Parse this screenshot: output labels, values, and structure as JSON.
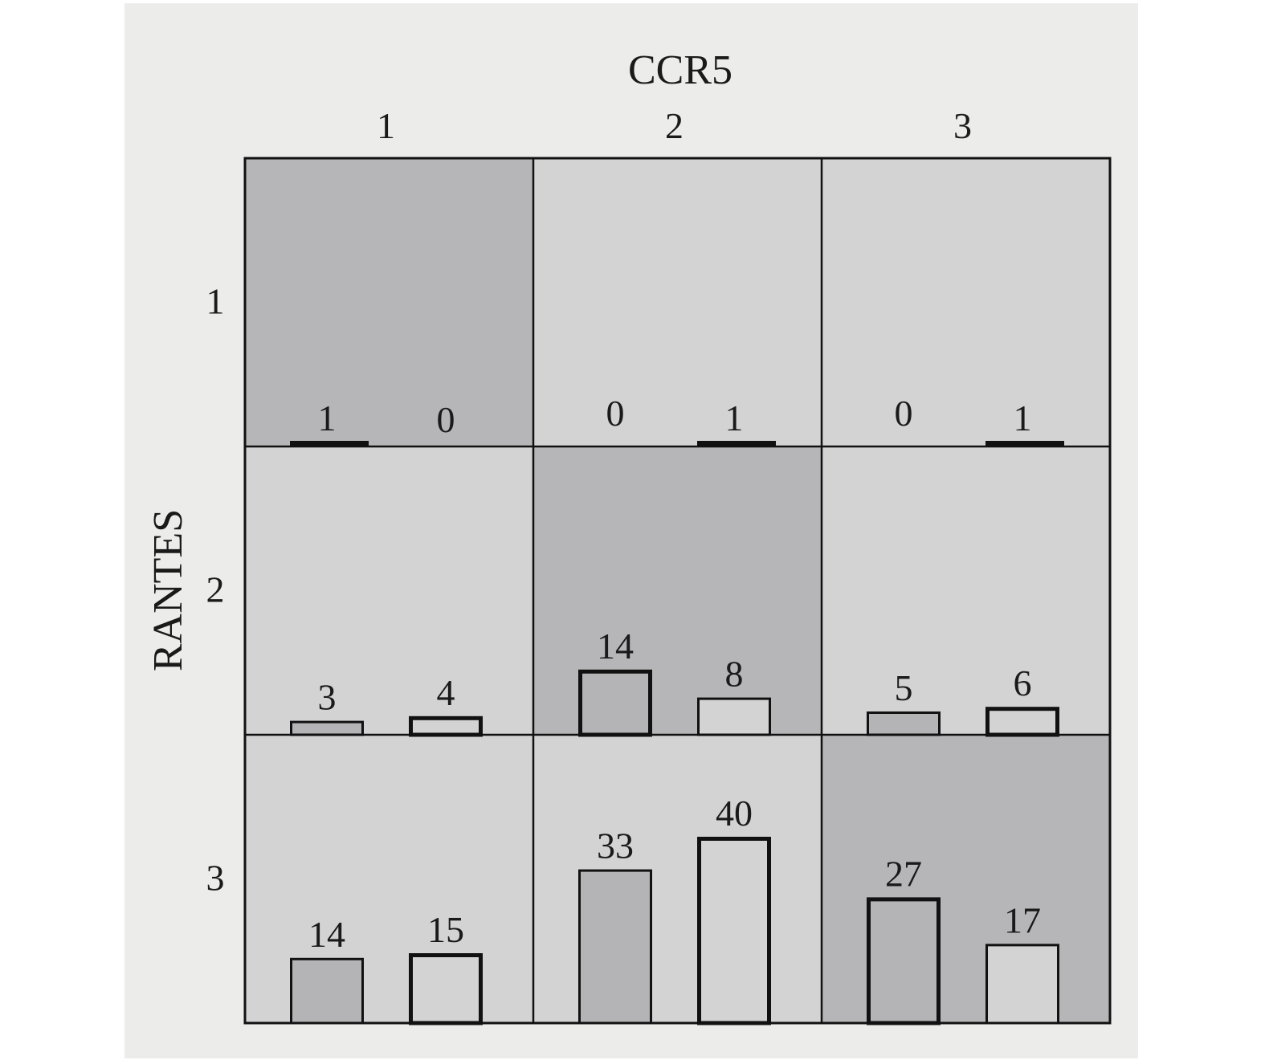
{
  "chart_data": {
    "type": "bar",
    "layout": "3x3 grid of paired bars",
    "x_title": "CCR5",
    "y_title": "RANTES",
    "col_labels": [
      "1",
      "2",
      "3"
    ],
    "row_labels": [
      "1",
      "2",
      "3"
    ],
    "ylim": [
      0,
      45
    ],
    "colors": {
      "panel_background": "#ececea",
      "cell_diagonal": "#b6b5b7",
      "cell_offdiagonal": "#d3d3d3",
      "bar_dark": "#b4b3b5",
      "bar_light": "#d3d3d3",
      "stroke": "#111111"
    },
    "cells": [
      {
        "row": 1,
        "col": 1,
        "diagonal": true,
        "bars": [
          {
            "value": 1,
            "label": "1",
            "fill": "dark",
            "thick": true
          },
          {
            "value": 0,
            "label": "0",
            "fill": "light",
            "thick": false
          }
        ]
      },
      {
        "row": 1,
        "col": 2,
        "diagonal": false,
        "bars": [
          {
            "value": 0,
            "label": "0",
            "fill": "dark",
            "thick": false
          },
          {
            "value": 1,
            "label": "1",
            "fill": "light",
            "thick": true
          }
        ]
      },
      {
        "row": 1,
        "col": 3,
        "diagonal": false,
        "bars": [
          {
            "value": 0,
            "label": "0",
            "fill": "dark",
            "thick": false
          },
          {
            "value": 1,
            "label": "1",
            "fill": "light",
            "thick": true
          }
        ]
      },
      {
        "row": 2,
        "col": 1,
        "diagonal": false,
        "bars": [
          {
            "value": 3,
            "label": "3",
            "fill": "dark",
            "thick": false
          },
          {
            "value": 4,
            "label": "4",
            "fill": "light",
            "thick": true
          }
        ]
      },
      {
        "row": 2,
        "col": 2,
        "diagonal": true,
        "bars": [
          {
            "value": 14,
            "label": "14",
            "fill": "dark",
            "thick": true
          },
          {
            "value": 8,
            "label": "8",
            "fill": "light",
            "thick": false
          }
        ]
      },
      {
        "row": 2,
        "col": 3,
        "diagonal": false,
        "bars": [
          {
            "value": 5,
            "label": "5",
            "fill": "dark",
            "thick": false
          },
          {
            "value": 6,
            "label": "6",
            "fill": "light",
            "thick": true
          }
        ]
      },
      {
        "row": 3,
        "col": 1,
        "diagonal": false,
        "bars": [
          {
            "value": 14,
            "label": "14",
            "fill": "dark",
            "thick": false
          },
          {
            "value": 15,
            "label": "15",
            "fill": "light",
            "thick": true
          }
        ]
      },
      {
        "row": 3,
        "col": 2,
        "diagonal": false,
        "bars": [
          {
            "value": 33,
            "label": "33",
            "fill": "dark",
            "thick": false
          },
          {
            "value": 40,
            "label": "40",
            "fill": "light",
            "thick": true
          }
        ]
      },
      {
        "row": 3,
        "col": 3,
        "diagonal": true,
        "bars": [
          {
            "value": 27,
            "label": "27",
            "fill": "dark",
            "thick": true
          },
          {
            "value": 17,
            "label": "17",
            "fill": "light",
            "thick": false
          }
        ]
      }
    ]
  }
}
